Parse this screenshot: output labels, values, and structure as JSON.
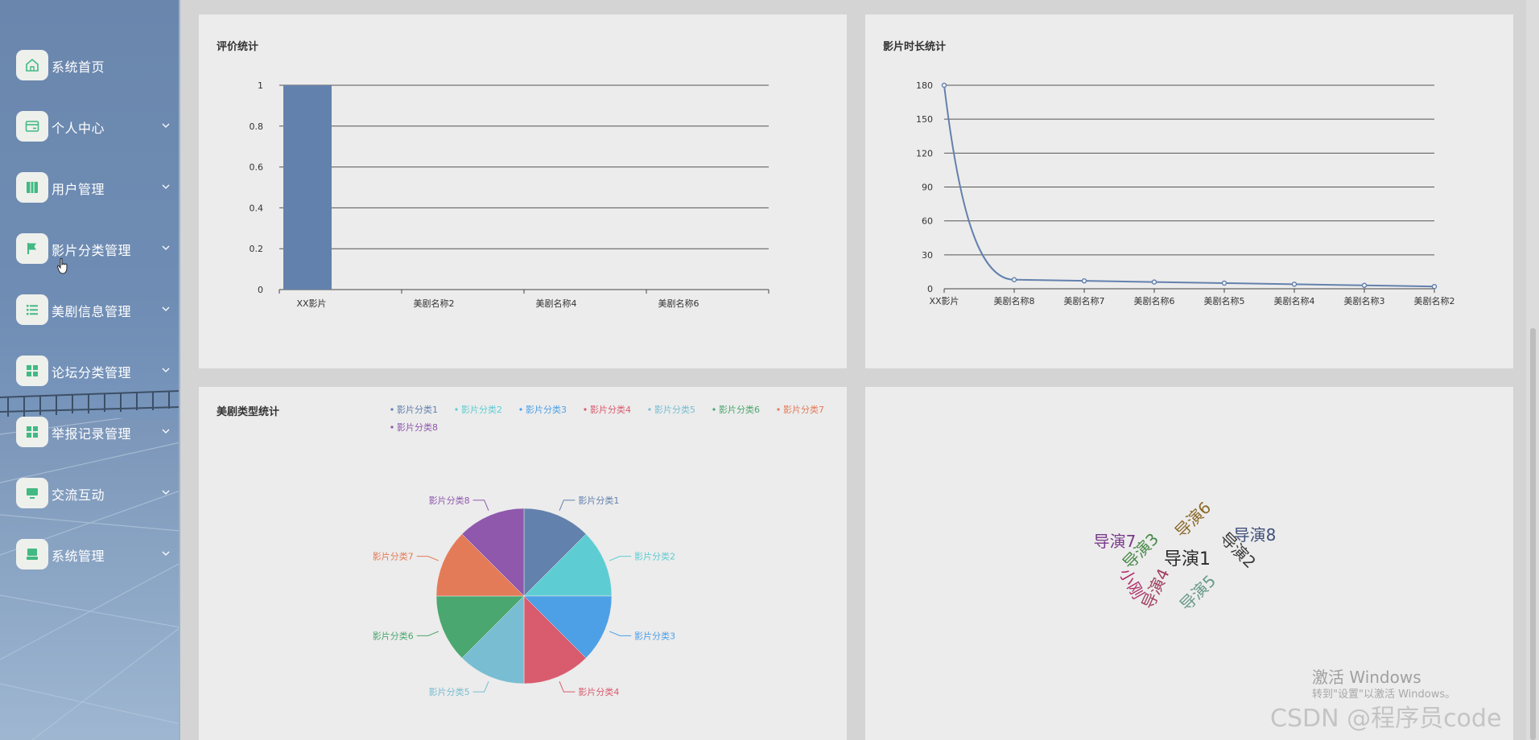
{
  "sidebar": {
    "items": [
      {
        "label": "系统首页",
        "icon": "home-icon",
        "has_arrow": false
      },
      {
        "label": "个人中心",
        "icon": "card-icon",
        "has_arrow": true
      },
      {
        "label": "用户管理",
        "icon": "users-icon",
        "has_arrow": true
      },
      {
        "label": "影片分类管理",
        "icon": "flag-icon",
        "has_arrow": true
      },
      {
        "label": "美剧信息管理",
        "icon": "list-icon",
        "has_arrow": true
      },
      {
        "label": "论坛分类管理",
        "icon": "grid-icon",
        "has_arrow": true
      },
      {
        "label": "举报记录管理",
        "icon": "grid-icon",
        "has_arrow": true
      },
      {
        "label": "交流互动",
        "icon": "monitor-icon",
        "has_arrow": true
      },
      {
        "label": "系统管理",
        "icon": "monitor-icon",
        "has_arrow": true
      }
    ]
  },
  "colors": {
    "accent_green": "#42b983",
    "bar": "#6381ad",
    "line": "#6381ad",
    "pie": [
      "#6381ad",
      "#5ecdd3",
      "#4ea0e6",
      "#d95b6e",
      "#78bdd2",
      "#4aa76f",
      "#e47b58",
      "#8f58ad"
    ],
    "words": [
      "#2a2a2a",
      "#3a3a3a",
      "#4a8a4a",
      "#8a6a2a",
      "#a04060",
      "#40507a",
      "#7a3a8a",
      "#b0306a",
      "#6a9a8a"
    ]
  },
  "panels": {
    "rating": {
      "title": "评价统计"
    },
    "duration": {
      "title": "影片时长统计"
    },
    "genre": {
      "title": "美剧类型统计"
    }
  },
  "chart_data": [
    {
      "type": "bar",
      "title": "评价统计",
      "categories": [
        "XX影片",
        "美剧名称2",
        "美剧名称4",
        "美剧名称6"
      ],
      "values": [
        1,
        0,
        0,
        0
      ],
      "ylim": [
        0,
        1
      ],
      "yticks": [
        "0",
        "0.2",
        "0.4",
        "0.6",
        "0.8",
        "1"
      ],
      "grid": true
    },
    {
      "type": "line",
      "title": "影片时长统计",
      "categories": [
        "XX影片",
        "美剧名称8",
        "美剧名称7",
        "美剧名称6",
        "美剧名称5",
        "美剧名称4",
        "美剧名称3",
        "美剧名称2"
      ],
      "values": [
        180,
        8,
        7,
        6,
        5,
        4,
        3,
        2
      ],
      "ylim": [
        0,
        180
      ],
      "yticks": [
        "0",
        "30",
        "60",
        "90",
        "120",
        "150",
        "180"
      ],
      "smooth": true,
      "grid": true
    },
    {
      "type": "pie",
      "title": "美剧类型统计",
      "legend_position": "top",
      "labels": [
        "影片分类1",
        "影片分类2",
        "影片分类3",
        "影片分类4",
        "影片分类5",
        "影片分类6",
        "影片分类7",
        "影片分类8"
      ],
      "values": [
        1,
        1,
        1,
        1,
        1,
        1,
        1,
        1
      ]
    }
  ],
  "wordcloud": {
    "words": [
      {
        "text": "导演1",
        "size": 22,
        "rotate": 0,
        "color": "#2a2a2a"
      },
      {
        "text": "导演2",
        "size": 20,
        "rotate": 45,
        "color": "#3a3a3a"
      },
      {
        "text": "导演3",
        "size": 20,
        "rotate": -45,
        "color": "#4a8a4a"
      },
      {
        "text": "导演6",
        "size": 20,
        "rotate": -45,
        "color": "#8a6a2a"
      },
      {
        "text": "导演4",
        "size": 20,
        "rotate": -65,
        "color": "#a04060"
      },
      {
        "text": "导演8",
        "size": 20,
        "rotate": 0,
        "color": "#40507a"
      },
      {
        "text": "导演7",
        "size": 20,
        "rotate": 0,
        "color": "#7a3a8a"
      },
      {
        "text": "小刚",
        "size": 20,
        "rotate": 60,
        "color": "#b0306a"
      },
      {
        "text": "导演5",
        "size": 20,
        "rotate": -45,
        "color": "#6a9a8a"
      }
    ]
  },
  "watermarks": {
    "windows_title": "激活 Windows",
    "windows_sub": "转到\"设置\"以激活 Windows。",
    "csdn": "CSDN @程序员code"
  }
}
